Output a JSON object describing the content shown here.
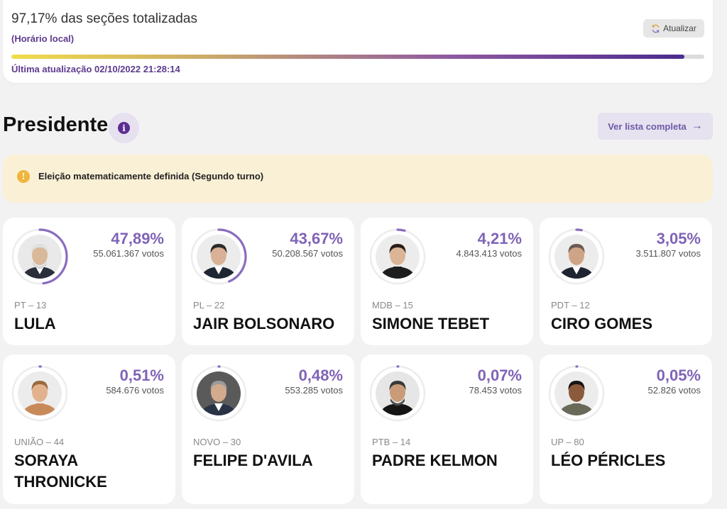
{
  "status": {
    "title": "97,17% das seções totalizadas",
    "subtitle": "(Horário local)",
    "refresh_label": "Atualizar",
    "progress": 0.9717,
    "updated": "Última atualização 02/10/2022 21:28:14"
  },
  "section": {
    "title": "Presidente",
    "info_glyph": "i",
    "list_button": "Ver lista completa",
    "list_arrow": "→"
  },
  "alert": {
    "glyph": "!",
    "text": "Eleição matematicamente definida (Segundo turno)"
  },
  "candidates": [
    {
      "pct": "47,89%",
      "votes": "55.061.367 votos",
      "party": "PT – 13",
      "name": "LULA",
      "share": 0.4789
    },
    {
      "pct": "43,67%",
      "votes": "50.208.567 votos",
      "party": "PL – 22",
      "name": "JAIR BOLSONARO",
      "share": 0.4367
    },
    {
      "pct": "4,21%",
      "votes": "4.843.413 votos",
      "party": "MDB – 15",
      "name": "SIMONE TEBET",
      "share": 0.0421
    },
    {
      "pct": "3,05%",
      "votes": "3.511.807 votos",
      "party": "PDT – 12",
      "name": "CIRO GOMES",
      "share": 0.0305
    },
    {
      "pct": "0,51%",
      "votes": "584.676 votos",
      "party": "UNIÃO – 44",
      "name": "SORAYA THRONICKE",
      "share": 0.0051
    },
    {
      "pct": "0,48%",
      "votes": "553.285 votos",
      "party": "NOVO – 30",
      "name": "FELIPE D'AVILA",
      "share": 0.0048
    },
    {
      "pct": "0,07%",
      "votes": "78.453 votos",
      "party": "PTB – 14",
      "name": "PADRE KELMON",
      "share": 0.0007
    },
    {
      "pct": "0,05%",
      "votes": "52.826 votos",
      "party": "UP – 80",
      "name": "LÉO PÉRICLES",
      "share": 0.0005
    }
  ],
  "colors": {
    "accent": "#5b2d91",
    "percent": "#7f63b6",
    "ring": "#8a6cbf",
    "alert_bg": "#faf0d5",
    "alert_icon": "#f0b53c"
  }
}
